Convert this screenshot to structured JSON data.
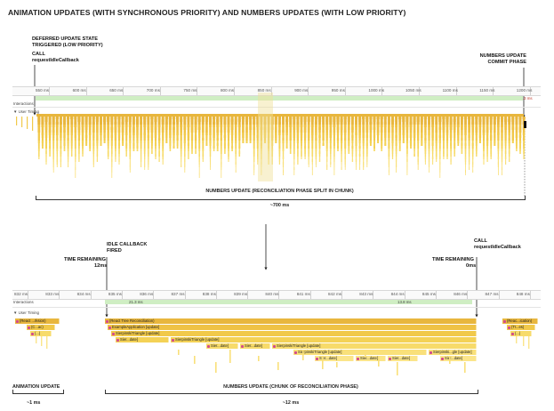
{
  "title": "ANIMATION UPDATES (WITH SYNCHRONOUS PRIORITY) AND NUMBERS UPDATES (WITH LOW PRIORITY)",
  "top": {
    "annotations": {
      "deferred_line1": "DEFERRED UPDATE STATE",
      "deferred_line2": "TRIGGERED (LOW PRIORITY)",
      "call_line1": "CALL",
      "call_line2": "requestIdleCallback",
      "commit_line1": "NUMBERS UPDATE",
      "commit_line2": "COMMIT PHASE"
    },
    "ticks": [
      "550 ms",
      "600 ms",
      "650 ms",
      "700 ms",
      "750 ms",
      "800 ms",
      "850 ms",
      "900 ms",
      "950 ms",
      "1000 ms",
      "1050 ms",
      "1100 ms",
      "1150 ms",
      "1200 ms"
    ],
    "duration_badge": "24.3 ms",
    "interactions_label": "Interactions",
    "user_timing_label": "▼ User Timing",
    "bracket_label": "NUMBERS UPDATE (RECONCILIATION PHASE SPLIT IN CHUNK)",
    "bracket_dim": "~700 ms"
  },
  "bottom": {
    "annotations": {
      "idle_line1": "IDLE CALLBACK",
      "idle_line2": "FIRED",
      "remaining_left_line1": "TIME REMAINING",
      "remaining_left_line2": "12ms",
      "call_line1": "CALL",
      "call_line2": "requestIdleCallback",
      "remaining_right_line1": "TIME REMAINING",
      "remaining_right_line2": "0ms"
    },
    "ticks": [
      "832 ms",
      "833 ms",
      "834 ms",
      "835 ms",
      "836 ms",
      "837 ms",
      "838 ms",
      "839 ms",
      "840 ms",
      "841 ms",
      "842 ms",
      "843 ms",
      "844 ms",
      "845 ms",
      "846 ms",
      "847 ms",
      "848 ms"
    ],
    "interactions_label": "Interactions",
    "green_left": "21.3 ms",
    "green_right": "13.8 ms",
    "user_timing_label": "▼ User Timing",
    "flame": {
      "left1": "(React ...rksion)",
      "left2": "(C...ac)",
      "left3": "(...)",
      "root": "(React Tree Reconciliation)",
      "app": "ExampleApplication [update]",
      "tri": "SierpinskiTriangle [update]",
      "sier_date": "Sier...date]",
      "tri2": "SierpinskiTriangle [update]",
      "sier_date2": "Sier...date]",
      "sier_date3": "Sier...date]",
      "tri3": "SierpinskiTriangle [update]",
      "tri4": "SierpinskiTriangle [update]",
      "sier_date4": "Sier...date]",
      "sier_date5": "Sier...date]",
      "sier_date6": "Sier...date]",
      "sier_date7": "Sier...date]",
      "sier_gle": "Sierpinski...gle [update]",
      "sier_date8": "Sier...date]",
      "right1": "(Reac...ication)",
      "right2": "(Tr...es)",
      "right3": "(...)"
    },
    "left_bracket_label": "ANIMATION UPDATE",
    "left_bracket_dim": "~1 ms",
    "right_bracket_label": "NUMBERS UPDATE (CHUNK OF RECONCILIATION PHASE)",
    "right_bracket_dim": "~12 ms"
  },
  "colors": {
    "flame_dark": "#e8b63d",
    "flame_mid": "#f1c94a",
    "flame_light": "#f7db6a",
    "green": "#cfeec3",
    "red": "#e0443a"
  }
}
